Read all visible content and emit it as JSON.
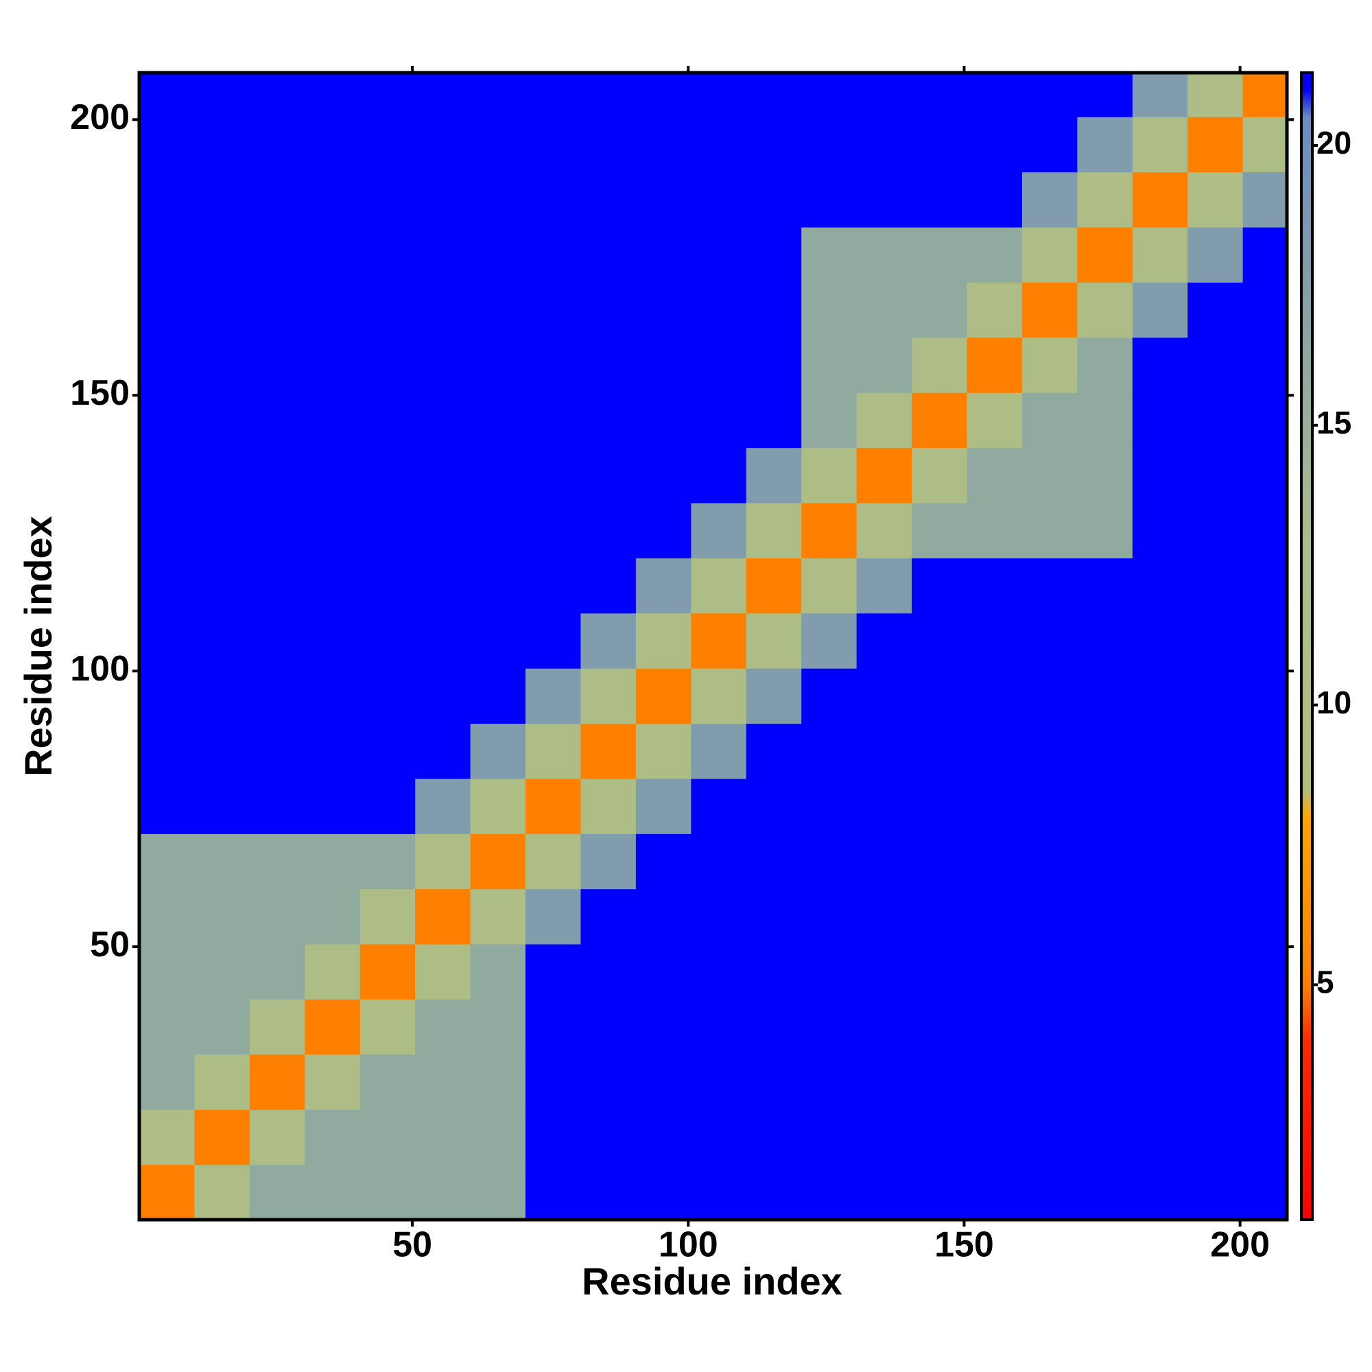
{
  "chart_data": {
    "type": "heatmap",
    "x_label": "Residue index",
    "y_label": "Residue index",
    "x_edges": [
      0.5,
      10.5,
      20.5,
      30.5,
      40.5,
      50.5,
      60.5,
      70.5,
      80.5,
      90.5,
      100.5,
      110.5,
      120.5,
      130.5,
      140.5,
      150.5,
      160.5,
      170.5,
      180.5,
      190.5,
      200.5,
      208.5
    ],
    "y_edges": [
      0.5,
      10.5,
      20.5,
      30.5,
      40.5,
      50.5,
      60.5,
      70.5,
      80.5,
      90.5,
      100.5,
      110.5,
      120.5,
      130.5,
      140.5,
      150.5,
      160.5,
      170.5,
      180.5,
      190.5,
      200.5,
      208.5
    ],
    "z": [
      [
        5,
        11,
        16,
        16,
        16,
        16,
        16,
        21,
        21,
        21,
        21,
        21,
        21,
        21,
        21,
        21,
        21,
        21,
        21,
        21,
        21
      ],
      [
        11,
        5,
        11,
        16,
        16,
        16,
        16,
        21,
        21,
        21,
        21,
        21,
        21,
        21,
        21,
        21,
        21,
        21,
        21,
        21,
        21
      ],
      [
        16,
        11,
        5,
        11,
        16,
        16,
        16,
        21,
        21,
        21,
        21,
        21,
        21,
        21,
        21,
        21,
        21,
        21,
        21,
        21,
        21
      ],
      [
        16,
        16,
        11,
        5,
        11,
        16,
        16,
        21,
        21,
        21,
        21,
        21,
        21,
        21,
        21,
        21,
        21,
        21,
        21,
        21,
        21
      ],
      [
        16,
        16,
        16,
        11,
        5,
        11,
        16,
        21,
        21,
        21,
        21,
        21,
        21,
        21,
        21,
        21,
        21,
        21,
        21,
        21,
        21
      ],
      [
        16,
        16,
        16,
        16,
        11,
        5,
        11,
        18,
        21,
        21,
        21,
        21,
        21,
        21,
        21,
        21,
        21,
        21,
        21,
        21,
        21
      ],
      [
        16,
        16,
        16,
        16,
        16,
        11,
        5,
        11,
        18,
        21,
        21,
        21,
        21,
        21,
        21,
        21,
        21,
        21,
        21,
        21,
        21
      ],
      [
        21,
        21,
        21,
        21,
        21,
        18,
        11,
        5,
        11,
        18,
        21,
        21,
        21,
        21,
        21,
        21,
        21,
        21,
        21,
        21,
        21
      ],
      [
        21,
        21,
        21,
        21,
        21,
        21,
        18,
        11,
        5,
        11,
        18,
        21,
        21,
        21,
        21,
        21,
        21,
        21,
        21,
        21,
        21
      ],
      [
        21,
        21,
        21,
        21,
        21,
        21,
        21,
        18,
        11,
        5,
        11,
        18,
        21,
        21,
        21,
        21,
        21,
        21,
        21,
        21,
        21
      ],
      [
        21,
        21,
        21,
        21,
        21,
        21,
        21,
        21,
        18,
        11,
        5,
        11,
        18,
        21,
        21,
        21,
        21,
        21,
        21,
        21,
        21
      ],
      [
        21,
        21,
        21,
        21,
        21,
        21,
        21,
        21,
        21,
        18,
        11,
        5,
        11,
        18,
        21,
        21,
        21,
        21,
        21,
        21,
        21
      ],
      [
        21,
        21,
        21,
        21,
        21,
        21,
        21,
        21,
        21,
        21,
        18,
        11,
        5,
        11,
        16,
        16,
        16,
        16,
        21,
        21,
        21
      ],
      [
        21,
        21,
        21,
        21,
        21,
        21,
        21,
        21,
        21,
        21,
        21,
        18,
        11,
        5,
        11,
        16,
        16,
        16,
        21,
        21,
        21
      ],
      [
        21,
        21,
        21,
        21,
        21,
        21,
        21,
        21,
        21,
        21,
        21,
        21,
        16,
        11,
        5,
        11,
        16,
        16,
        21,
        21,
        21
      ],
      [
        21,
        21,
        21,
        21,
        21,
        21,
        21,
        21,
        21,
        21,
        21,
        21,
        16,
        16,
        11,
        5,
        11,
        16,
        21,
        21,
        21
      ],
      [
        21,
        21,
        21,
        21,
        21,
        21,
        21,
        21,
        21,
        21,
        21,
        21,
        16,
        16,
        16,
        11,
        5,
        11,
        18,
        21,
        21
      ],
      [
        21,
        21,
        21,
        21,
        21,
        21,
        21,
        21,
        21,
        21,
        21,
        21,
        16,
        16,
        16,
        16,
        11,
        5,
        11,
        18,
        21
      ],
      [
        21,
        21,
        21,
        21,
        21,
        21,
        21,
        21,
        21,
        21,
        21,
        21,
        21,
        21,
        21,
        21,
        18,
        11,
        5,
        11,
        18
      ],
      [
        21,
        21,
        21,
        21,
        21,
        21,
        21,
        21,
        21,
        21,
        21,
        21,
        21,
        21,
        21,
        21,
        21,
        18,
        11,
        5,
        11
      ],
      [
        21,
        21,
        21,
        21,
        21,
        21,
        21,
        21,
        21,
        21,
        21,
        21,
        21,
        21,
        21,
        21,
        21,
        21,
        18,
        11,
        5
      ]
    ],
    "xlim": [
      0.5,
      208.5
    ],
    "ylim": [
      0.5,
      208.5
    ],
    "xticks": [
      50,
      100,
      150,
      200
    ],
    "yticks": [
      50,
      100,
      150,
      200
    ],
    "colorbar": {
      "lim": [
        0.8,
        21.3
      ],
      "ticks": [
        5,
        10,
        15,
        20
      ]
    },
    "colorscale": [
      [
        0.8,
        "#ff0000"
      ],
      [
        4,
        "#ff2a00"
      ],
      [
        5,
        "#ff7f00"
      ],
      [
        8,
        "#ffa500"
      ],
      [
        8.5,
        "#b4be7c"
      ],
      [
        13,
        "#a9bd8e"
      ],
      [
        17,
        "#88a3a6"
      ],
      [
        20.5,
        "#6b8cc0"
      ],
      [
        21,
        "#0000ff"
      ]
    ]
  }
}
